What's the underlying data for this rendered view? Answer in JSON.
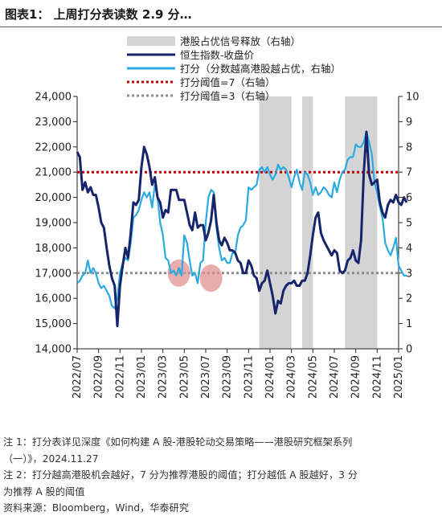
{
  "title": "图表1： 上周打分表读数 2.9 分…",
  "notes": [
    "注 1：打分表详见深度《如何构建 A 股-港股轮动交易策略——港股研究框架系列",
    "（一）》，2024.11.27",
    "注 2：打分越高港股机会越好，7 分为推荐港股的阈值；打分越低 A 股越好，3 分",
    "为推荐 A 股的阈值",
    "资料来源：Bloomberg，Wind，华泰研究"
  ],
  "chart_data": {
    "type": "line",
    "legend_position": "top-right",
    "grid": false,
    "x_tick_labels": [
      "2022/07",
      "2022/09",
      "2022/11",
      "2023/01",
      "2023/03",
      "2023/05",
      "2023/07",
      "2023/09",
      "2023/11",
      "2024/01",
      "2024/03",
      "2024/05",
      "2024/07",
      "2024/09",
      "2024/11",
      "2025/01"
    ],
    "x_range": [
      "2022/07",
      "2025/01"
    ],
    "y_left": {
      "range": [
        14000,
        24000
      ],
      "ticks": [
        "14,000",
        "15,000",
        "16,000",
        "17,000",
        "18,000",
        "19,000",
        "20,000",
        "21,000",
        "22,000",
        "23,000",
        "24,000"
      ]
    },
    "y_right": {
      "range": [
        0,
        10
      ],
      "ticks": [
        "0",
        "1",
        "2",
        "3",
        "4",
        "5",
        "6",
        "7",
        "8",
        "9",
        "10"
      ]
    },
    "colors": {
      "hsi": "#16246b",
      "score": "#2aaae2",
      "threshold7": "#c00000",
      "threshold3": "#8c8c8c",
      "shade": "#d4d4d4",
      "highlight": "#e08a8a"
    },
    "series": [
      {
        "name": "港股占优信号释放（右轴）",
        "type": "shaded-periods",
        "periods": [
          [
            "2023/12",
            "2024/02"
          ],
          [
            "2024/04",
            "2024/04"
          ],
          [
            "2024/08",
            "2024/10"
          ]
        ]
      },
      {
        "name": "恒生指数-收盘价",
        "axis": "left",
        "points": [
          [
            "2022/07",
            21800
          ],
          [
            "2022/07",
            21600
          ],
          [
            "2022/07",
            20300
          ],
          [
            "2022/07",
            20600
          ],
          [
            "2022/08",
            20200
          ],
          [
            "2022/08",
            20400
          ],
          [
            "2022/08",
            20100
          ],
          [
            "2022/08",
            20100
          ],
          [
            "2022/09",
            19600
          ],
          [
            "2022/09",
            19000
          ],
          [
            "2022/09",
            18800
          ],
          [
            "2022/09",
            18000
          ],
          [
            "2022/10",
            17300
          ],
          [
            "2022/10",
            16800
          ],
          [
            "2022/10",
            16500
          ],
          [
            "2022/10",
            14900
          ],
          [
            "2022/11",
            16500
          ],
          [
            "2022/11",
            17300
          ],
          [
            "2022/11",
            18000
          ],
          [
            "2022/11",
            17600
          ],
          [
            "2022/12",
            18600
          ],
          [
            "2022/12",
            19800
          ],
          [
            "2022/12",
            19700
          ],
          [
            "2022/12",
            19900
          ],
          [
            "2023/01",
            21200
          ],
          [
            "2023/01",
            22000
          ],
          [
            "2023/01",
            21700
          ],
          [
            "2023/01",
            21200
          ],
          [
            "2023/02",
            20500
          ],
          [
            "2023/02",
            20800
          ],
          [
            "2023/02",
            20000
          ],
          [
            "2023/02",
            19800
          ],
          [
            "2023/03",
            19200
          ],
          [
            "2023/03",
            19500
          ],
          [
            "2023/03",
            19400
          ],
          [
            "2023/03",
            20300
          ],
          [
            "2023/04",
            20300
          ],
          [
            "2023/04",
            20300
          ],
          [
            "2023/04",
            19900
          ],
          [
            "2023/04",
            19900
          ],
          [
            "2023/05",
            19900
          ],
          [
            "2023/05",
            19400
          ],
          [
            "2023/05",
            18900
          ],
          [
            "2023/05",
            18700
          ],
          [
            "2023/06",
            19400
          ],
          [
            "2023/06",
            18800
          ],
          [
            "2023/06",
            18900
          ],
          [
            "2023/06",
            18900
          ],
          [
            "2023/07",
            18300
          ],
          [
            "2023/07",
            18600
          ],
          [
            "2023/07",
            19100
          ],
          [
            "2023/07",
            20100
          ],
          [
            "2023/08",
            19000
          ],
          [
            "2023/08",
            18300
          ],
          [
            "2023/08",
            18100
          ],
          [
            "2023/08",
            18400
          ],
          [
            "2023/09",
            18200
          ],
          [
            "2023/09",
            17900
          ],
          [
            "2023/09",
            17900
          ],
          [
            "2023/09",
            17800
          ],
          [
            "2023/10",
            17500
          ],
          [
            "2023/10",
            17400
          ],
          [
            "2023/10",
            17000
          ],
          [
            "2023/10",
            17000
          ],
          [
            "2023/11",
            17500
          ],
          [
            "2023/11",
            17300
          ],
          [
            "2023/11",
            16900
          ],
          [
            "2023/11",
            16800
          ],
          [
            "2023/12",
            16300
          ],
          [
            "2023/12",
            16600
          ],
          [
            "2023/12",
            16700
          ],
          [
            "2023/12",
            17100
          ],
          [
            "2024/01",
            16600
          ],
          [
            "2024/01",
            16100
          ],
          [
            "2024/01",
            15400
          ],
          [
            "2024/01",
            15900
          ],
          [
            "2024/02",
            15800
          ],
          [
            "2024/02",
            16300
          ],
          [
            "2024/02",
            16500
          ],
          [
            "2024/02",
            16600
          ],
          [
            "2024/03",
            16600
          ],
          [
            "2024/03",
            16700
          ],
          [
            "2024/03",
            16500
          ],
          [
            "2024/03",
            16500
          ],
          [
            "2024/04",
            16700
          ],
          [
            "2024/04",
            16700
          ],
          [
            "2024/04",
            17000
          ],
          [
            "2024/04",
            17700
          ],
          [
            "2024/05",
            18500
          ],
          [
            "2024/05",
            19200
          ],
          [
            "2024/05",
            19400
          ],
          [
            "2024/05",
            18600
          ],
          [
            "2024/06",
            18300
          ],
          [
            "2024/06",
            18100
          ],
          [
            "2024/06",
            17900
          ],
          [
            "2024/06",
            17700
          ],
          [
            "2024/07",
            17900
          ],
          [
            "2024/07",
            17800
          ],
          [
            "2024/07",
            17100
          ],
          [
            "2024/07",
            17000
          ],
          [
            "2024/08",
            17100
          ],
          [
            "2024/08",
            17500
          ],
          [
            "2024/08",
            17600
          ],
          [
            "2024/08",
            17900
          ],
          [
            "2024/09",
            17500
          ],
          [
            "2024/09",
            17400
          ],
          [
            "2024/09",
            18300
          ],
          [
            "2024/09",
            21000
          ],
          [
            "2024/10",
            22600
          ],
          [
            "2024/10",
            20900
          ],
          [
            "2024/10",
            20500
          ],
          [
            "2024/10",
            20600
          ],
          [
            "2024/11",
            20700
          ],
          [
            "2024/11",
            19800
          ],
          [
            "2024/11",
            19400
          ],
          [
            "2024/11",
            19200
          ],
          [
            "2024/12",
            19700
          ],
          [
            "2024/12",
            19900
          ],
          [
            "2024/12",
            19800
          ],
          [
            "2024/12",
            20100
          ],
          [
            "2025/01",
            19800
          ],
          [
            "2025/01",
            19700
          ],
          [
            "2025/01",
            20000
          ],
          [
            "2025/01",
            19800
          ]
        ]
      },
      {
        "name": "打分（分数越高港股越占优，右轴）",
        "axis": "right",
        "points": [
          [
            "2022/07",
            2.6
          ],
          [
            "2022/07",
            2.7
          ],
          [
            "2022/07",
            2.9
          ],
          [
            "2022/07",
            3.0
          ],
          [
            "2022/08",
            3.5
          ],
          [
            "2022/08",
            3.0
          ],
          [
            "2022/08",
            3.2
          ],
          [
            "2022/08",
            3.0
          ],
          [
            "2022/09",
            2.6
          ],
          [
            "2022/09",
            2.4
          ],
          [
            "2022/09",
            2.5
          ],
          [
            "2022/09",
            2.3
          ],
          [
            "2022/10",
            2.1
          ],
          [
            "2022/10",
            1.7
          ],
          [
            "2022/10",
            1.6
          ],
          [
            "2022/10",
            2.0
          ],
          [
            "2022/11",
            3.0
          ],
          [
            "2022/11",
            3.4
          ],
          [
            "2022/11",
            3.6
          ],
          [
            "2022/11",
            3.5
          ],
          [
            "2022/12",
            4.2
          ],
          [
            "2022/12",
            5.2
          ],
          [
            "2022/12",
            5.3
          ],
          [
            "2022/12",
            5.5
          ],
          [
            "2023/01",
            5.9
          ],
          [
            "2023/01",
            6.2
          ],
          [
            "2023/01",
            6.0
          ],
          [
            "2023/01",
            6.2
          ],
          [
            "2023/02",
            5.6
          ],
          [
            "2023/02",
            6.5
          ],
          [
            "2023/02",
            6.0
          ],
          [
            "2023/02",
            5.0
          ],
          [
            "2023/03",
            4.5
          ],
          [
            "2023/03",
            3.6
          ],
          [
            "2023/03",
            3.5
          ],
          [
            "2023/03",
            3.0
          ],
          [
            "2023/04",
            3.1
          ],
          [
            "2023/04",
            2.9
          ],
          [
            "2023/04",
            3.2
          ],
          [
            "2023/04",
            2.9
          ],
          [
            "2023/05",
            4.5
          ],
          [
            "2023/05",
            4.2
          ],
          [
            "2023/05",
            3.5
          ],
          [
            "2023/05",
            2.9
          ],
          [
            "2023/06",
            3.0
          ],
          [
            "2023/06",
            2.6
          ],
          [
            "2023/06",
            3.4
          ],
          [
            "2023/06",
            3.5
          ],
          [
            "2023/07",
            5.0
          ],
          [
            "2023/07",
            6.0
          ],
          [
            "2023/07",
            6.3
          ],
          [
            "2023/07",
            6.2
          ],
          [
            "2023/08",
            4.8
          ],
          [
            "2023/08",
            4.0
          ],
          [
            "2023/08",
            3.5
          ],
          [
            "2023/08",
            3.6
          ],
          [
            "2023/09",
            3.4
          ],
          [
            "2023/09",
            3.4
          ],
          [
            "2023/09",
            3.8
          ],
          [
            "2023/09",
            3.8
          ],
          [
            "2023/10",
            4.5
          ],
          [
            "2023/10",
            4.8
          ],
          [
            "2023/10",
            4.9
          ],
          [
            "2023/10",
            5.1
          ],
          [
            "2023/11",
            6.4
          ],
          [
            "2023/11",
            6.3
          ],
          [
            "2023/11",
            6.4
          ],
          [
            "2023/11",
            6.5
          ],
          [
            "2023/12",
            7.1
          ],
          [
            "2023/12",
            7.2
          ],
          [
            "2023/12",
            7.0
          ],
          [
            "2023/12",
            7.2
          ],
          [
            "2024/01",
            6.9
          ],
          [
            "2024/01",
            6.7
          ],
          [
            "2024/01",
            6.9
          ],
          [
            "2024/01",
            7.3
          ],
          [
            "2024/02",
            7.1
          ],
          [
            "2024/02",
            7.2
          ],
          [
            "2024/02",
            7.1
          ],
          [
            "2024/02",
            6.8
          ],
          [
            "2024/03",
            6.4
          ],
          [
            "2024/03",
            6.8
          ],
          [
            "2024/03",
            7.1
          ],
          [
            "2024/03",
            6.6
          ],
          [
            "2024/04",
            6.3
          ],
          [
            "2024/04",
            7.0
          ],
          [
            "2024/04",
            6.9
          ],
          [
            "2024/04",
            6.6
          ],
          [
            "2024/05",
            6.1
          ],
          [
            "2024/05",
            6.4
          ],
          [
            "2024/05",
            6.1
          ],
          [
            "2024/05",
            6.2
          ],
          [
            "2024/06",
            6.4
          ],
          [
            "2024/06",
            6.3
          ],
          [
            "2024/06",
            6.1
          ],
          [
            "2024/06",
            6.0
          ],
          [
            "2024/07",
            6.6
          ],
          [
            "2024/07",
            6.2
          ],
          [
            "2024/07",
            6.7
          ],
          [
            "2024/07",
            7.0
          ],
          [
            "2024/08",
            7.1
          ],
          [
            "2024/08",
            7.5
          ],
          [
            "2024/08",
            7.6
          ],
          [
            "2024/08",
            7.6
          ],
          [
            "2024/09",
            8.1
          ],
          [
            "2024/09",
            8.0
          ],
          [
            "2024/09",
            8.0
          ],
          [
            "2024/09",
            8.2
          ],
          [
            "2024/10",
            8.6
          ],
          [
            "2024/10",
            8.2
          ],
          [
            "2024/10",
            7.7
          ],
          [
            "2024/10",
            6.6
          ],
          [
            "2024/11",
            6.2
          ],
          [
            "2024/11",
            5.6
          ],
          [
            "2024/11",
            5.2
          ],
          [
            "2024/11",
            4.2
          ],
          [
            "2024/12",
            3.9
          ],
          [
            "2024/12",
            3.7
          ],
          [
            "2024/12",
            4.0
          ],
          [
            "2024/12",
            4.4
          ],
          [
            "2025/01",
            3.3
          ],
          [
            "2025/01",
            3.1
          ],
          [
            "2025/01",
            2.9
          ],
          [
            "2025/01",
            2.9
          ]
        ]
      },
      {
        "name": "打分阈值=7（右轴）",
        "axis": "right",
        "type": "reference-line",
        "value": 7
      },
      {
        "name": "打分阈值=3（右轴）",
        "axis": "right",
        "type": "reference-line",
        "value": 3
      }
    ],
    "highlights": [
      {
        "x": "2023/04",
        "y_right": 3.0
      },
      {
        "x": "2023/07",
        "y_right": 2.8
      }
    ]
  }
}
